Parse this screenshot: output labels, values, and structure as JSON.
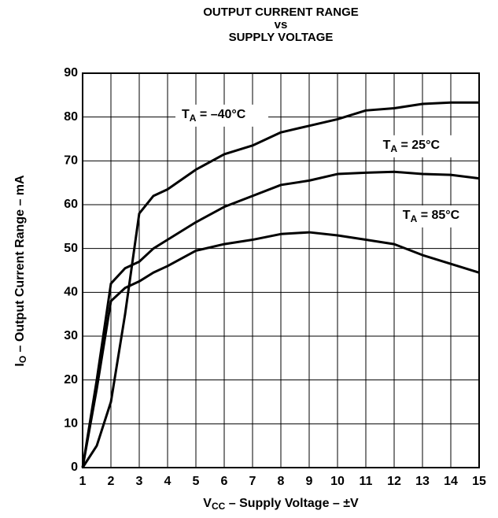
{
  "chart_data": {
    "type": "line",
    "title": [
      "OUTPUT CURRENT RANGE",
      "vs",
      "SUPPLY VOLTAGE"
    ],
    "xlabel": {
      "main": "V",
      "sub": "CC",
      "rest": " – Supply Voltage – ±V"
    },
    "ylabel": {
      "main": "I",
      "sub": "O",
      "rest": " – Output Current Range – mA"
    },
    "x": [
      1,
      1.5,
      2,
      2.5,
      3,
      3.5,
      4,
      5,
      6,
      7,
      8,
      9,
      10,
      11,
      12,
      13,
      14,
      15
    ],
    "series": [
      {
        "name": {
          "main": "T",
          "sub": "A",
          "rest": " = –40°C"
        },
        "color": "#000000",
        "values": [
          0,
          5,
          15,
          35,
          58,
          62,
          63.5,
          68,
          71.5,
          73.5,
          76.5,
          78,
          79.5,
          81.5,
          82,
          83,
          83.3,
          83.3
        ]
      },
      {
        "name": {
          "main": "T",
          "sub": "A",
          "rest": " = 25°C"
        },
        "color": "#000000",
        "values": [
          0,
          20,
          42,
          45.5,
          47,
          50,
          52,
          56,
          59.5,
          62,
          64.5,
          65.5,
          67,
          67.3,
          67.5,
          67,
          66.8,
          66
        ]
      },
      {
        "name": {
          "main": "T",
          "sub": "A",
          "rest": " = 85°C"
        },
        "color": "#000000",
        "values": [
          0,
          18,
          38,
          41,
          42.5,
          44.5,
          46,
          49.5,
          51,
          52,
          53.3,
          53.7,
          53,
          52,
          51,
          48.5,
          46.5,
          44.5
        ]
      }
    ],
    "xlim": [
      1,
      15
    ],
    "ylim": [
      0,
      90
    ],
    "xticks": [
      1,
      2,
      3,
      4,
      5,
      6,
      7,
      8,
      9,
      10,
      11,
      12,
      13,
      14,
      15
    ],
    "yticks": [
      0,
      10,
      20,
      30,
      40,
      50,
      60,
      70,
      80,
      90
    ],
    "grid": true
  }
}
